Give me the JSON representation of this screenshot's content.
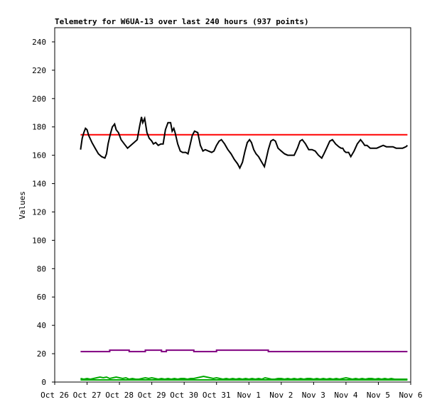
{
  "chart_data": {
    "type": "line",
    "title": "Telemetry for W6UA-13 over last 240 hours (937 points)",
    "xlabel": "",
    "ylabel": "Values",
    "ylim": [
      0,
      250
    ],
    "xlim": [
      0,
      11
    ],
    "grid": false,
    "y_ticks": [
      0,
      20,
      40,
      60,
      80,
      100,
      120,
      140,
      160,
      180,
      200,
      220,
      240
    ],
    "x_ticks": [
      {
        "x": 0,
        "label": "Oct 26"
      },
      {
        "x": 1,
        "label": "Oct 27"
      },
      {
        "x": 2,
        "label": "Oct 28"
      },
      {
        "x": 3,
        "label": "Oct 29"
      },
      {
        "x": 4,
        "label": "Oct 30"
      },
      {
        "x": 5,
        "label": "Oct 31"
      },
      {
        "x": 6,
        "label": "Nov 1"
      },
      {
        "x": 7,
        "label": "Nov 2"
      },
      {
        "x": 8,
        "label": "Nov 3"
      },
      {
        "x": 9,
        "label": "Nov 4"
      },
      {
        "x": 10,
        "label": "Nov 5"
      },
      {
        "x": 11,
        "label": "Nov 6"
      }
    ],
    "series": [
      {
        "color": "#ff0000",
        "points": [
          [
            0.8,
            174.5
          ],
          [
            10.9,
            174.5
          ]
        ]
      },
      {
        "color": "#000000",
        "points": [
          [
            0.8,
            164
          ],
          [
            0.85,
            172
          ],
          [
            0.9,
            176
          ],
          [
            0.95,
            179
          ],
          [
            1.0,
            178
          ],
          [
            1.05,
            174
          ],
          [
            1.15,
            169
          ],
          [
            1.25,
            165
          ],
          [
            1.35,
            161
          ],
          [
            1.45,
            159
          ],
          [
            1.55,
            158
          ],
          [
            1.6,
            161
          ],
          [
            1.65,
            168
          ],
          [
            1.72,
            175
          ],
          [
            1.78,
            180
          ],
          [
            1.85,
            182
          ],
          [
            1.9,
            178
          ],
          [
            1.97,
            176
          ],
          [
            2.05,
            171
          ],
          [
            2.15,
            168
          ],
          [
            2.25,
            165
          ],
          [
            2.35,
            167
          ],
          [
            2.45,
            169
          ],
          [
            2.55,
            171
          ],
          [
            2.62,
            180
          ],
          [
            2.68,
            187
          ],
          [
            2.72,
            183
          ],
          [
            2.78,
            186
          ],
          [
            2.85,
            176
          ],
          [
            2.92,
            172
          ],
          [
            3.0,
            170
          ],
          [
            3.05,
            168
          ],
          [
            3.12,
            169
          ],
          [
            3.2,
            167
          ],
          [
            3.28,
            168
          ],
          [
            3.35,
            168
          ],
          [
            3.42,
            178
          ],
          [
            3.5,
            183
          ],
          [
            3.58,
            183
          ],
          [
            3.63,
            177
          ],
          [
            3.68,
            179
          ],
          [
            3.72,
            176
          ],
          [
            3.8,
            168
          ],
          [
            3.88,
            163
          ],
          [
            3.95,
            162
          ],
          [
            4.05,
            162
          ],
          [
            4.12,
            161
          ],
          [
            4.18,
            167
          ],
          [
            4.25,
            174
          ],
          [
            4.32,
            177
          ],
          [
            4.42,
            176
          ],
          [
            4.5,
            167
          ],
          [
            4.58,
            163
          ],
          [
            4.65,
            164
          ],
          [
            4.75,
            163
          ],
          [
            4.85,
            162
          ],
          [
            4.92,
            163
          ],
          [
            5.0,
            167
          ],
          [
            5.08,
            170
          ],
          [
            5.15,
            171
          ],
          [
            5.25,
            168
          ],
          [
            5.35,
            164
          ],
          [
            5.45,
            161
          ],
          [
            5.55,
            157
          ],
          [
            5.65,
            154
          ],
          [
            5.72,
            151
          ],
          [
            5.8,
            155
          ],
          [
            5.88,
            163
          ],
          [
            5.95,
            169
          ],
          [
            6.02,
            171
          ],
          [
            6.08,
            169
          ],
          [
            6.15,
            164
          ],
          [
            6.22,
            161
          ],
          [
            6.3,
            159
          ],
          [
            6.4,
            155
          ],
          [
            6.48,
            152
          ],
          [
            6.52,
            156
          ],
          [
            6.6,
            164
          ],
          [
            6.68,
            170
          ],
          [
            6.75,
            171
          ],
          [
            6.82,
            170
          ],
          [
            6.9,
            165
          ],
          [
            7.0,
            163
          ],
          [
            7.1,
            161
          ],
          [
            7.2,
            160
          ],
          [
            7.3,
            160
          ],
          [
            7.4,
            160
          ],
          [
            7.5,
            165
          ],
          [
            7.58,
            170
          ],
          [
            7.65,
            171
          ],
          [
            7.75,
            168
          ],
          [
            7.85,
            164
          ],
          [
            7.95,
            164
          ],
          [
            8.05,
            163
          ],
          [
            8.15,
            160
          ],
          [
            8.25,
            158
          ],
          [
            8.32,
            161
          ],
          [
            8.4,
            165
          ],
          [
            8.5,
            170
          ],
          [
            8.58,
            171
          ],
          [
            8.68,
            168
          ],
          [
            8.78,
            166
          ],
          [
            8.85,
            165
          ],
          [
            8.9,
            165
          ],
          [
            8.95,
            163
          ],
          [
            9.0,
            162
          ],
          [
            9.08,
            162
          ],
          [
            9.15,
            159
          ],
          [
            9.25,
            163
          ],
          [
            9.35,
            168
          ],
          [
            9.45,
            171
          ],
          [
            9.52,
            169
          ],
          [
            9.58,
            167
          ],
          [
            9.65,
            167
          ],
          [
            9.75,
            165
          ],
          [
            9.85,
            165
          ],
          [
            9.95,
            165
          ],
          [
            10.05,
            166
          ],
          [
            10.15,
            167
          ],
          [
            10.25,
            166
          ],
          [
            10.35,
            166
          ],
          [
            10.45,
            166
          ],
          [
            10.55,
            165
          ],
          [
            10.65,
            165
          ],
          [
            10.75,
            165
          ],
          [
            10.85,
            166
          ],
          [
            10.9,
            167
          ]
        ]
      },
      {
        "color": "#800080",
        "points": [
          [
            0.8,
            21.5
          ],
          [
            1.7,
            21.5
          ],
          [
            1.7,
            22.5
          ],
          [
            2.3,
            22.5
          ],
          [
            2.3,
            21.5
          ],
          [
            2.8,
            21.5
          ],
          [
            2.8,
            22.5
          ],
          [
            3.3,
            22.5
          ],
          [
            3.3,
            21.5
          ],
          [
            3.45,
            21.5
          ],
          [
            3.45,
            22.5
          ],
          [
            4.3,
            22.5
          ],
          [
            4.3,
            21.5
          ],
          [
            5.0,
            21.5
          ],
          [
            5.0,
            22.5
          ],
          [
            6.6,
            22.5
          ],
          [
            6.6,
            21.5
          ],
          [
            10.9,
            21.5
          ]
        ]
      },
      {
        "color": "#00aa00",
        "points": [
          [
            0.8,
            2.5
          ],
          [
            0.9,
            2
          ],
          [
            1.0,
            2.5
          ],
          [
            1.1,
            2
          ],
          [
            1.2,
            2.5
          ],
          [
            1.3,
            3
          ],
          [
            1.4,
            3.5
          ],
          [
            1.5,
            3
          ],
          [
            1.6,
            3.5
          ],
          [
            1.7,
            2.5
          ],
          [
            1.8,
            3
          ],
          [
            1.9,
            3.5
          ],
          [
            2.0,
            3
          ],
          [
            2.1,
            2.5
          ],
          [
            2.2,
            3
          ],
          [
            2.3,
            2
          ],
          [
            2.4,
            2.5
          ],
          [
            2.5,
            2
          ],
          [
            2.6,
            2
          ],
          [
            2.7,
            2.5
          ],
          [
            2.8,
            3
          ],
          [
            2.9,
            2.5
          ],
          [
            3.0,
            3
          ],
          [
            3.1,
            2.5
          ],
          [
            3.2,
            2
          ],
          [
            3.3,
            2.5
          ],
          [
            3.4,
            2
          ],
          [
            3.5,
            2.5
          ],
          [
            3.6,
            2
          ],
          [
            3.7,
            2.5
          ],
          [
            3.8,
            2
          ],
          [
            3.9,
            2.5
          ],
          [
            4.0,
            2.5
          ],
          [
            4.1,
            2
          ],
          [
            4.2,
            2.5
          ],
          [
            4.3,
            2.5
          ],
          [
            4.4,
            3
          ],
          [
            4.5,
            3.5
          ],
          [
            4.6,
            4
          ],
          [
            4.7,
            3.5
          ],
          [
            4.8,
            3
          ],
          [
            4.9,
            2.5
          ],
          [
            5.0,
            3
          ],
          [
            5.1,
            2.5
          ],
          [
            5.2,
            2
          ],
          [
            5.3,
            2.5
          ],
          [
            5.4,
            2
          ],
          [
            5.5,
            2.5
          ],
          [
            5.6,
            2
          ],
          [
            5.7,
            2.5
          ],
          [
            5.8,
            2
          ],
          [
            5.9,
            2.5
          ],
          [
            6.0,
            2
          ],
          [
            6.1,
            2.5
          ],
          [
            6.2,
            2
          ],
          [
            6.3,
            2.5
          ],
          [
            6.4,
            2
          ],
          [
            6.5,
            3
          ],
          [
            6.6,
            2.5
          ],
          [
            6.7,
            2
          ],
          [
            6.8,
            2
          ],
          [
            6.9,
            2.5
          ],
          [
            7.0,
            2.5
          ],
          [
            7.1,
            2
          ],
          [
            7.2,
            2.5
          ],
          [
            7.3,
            2
          ],
          [
            7.4,
            2.5
          ],
          [
            7.5,
            2
          ],
          [
            7.6,
            2.5
          ],
          [
            7.7,
            2
          ],
          [
            7.8,
            2.5
          ],
          [
            7.9,
            2.5
          ],
          [
            8.0,
            2
          ],
          [
            8.1,
            2.5
          ],
          [
            8.2,
            2
          ],
          [
            8.3,
            2.5
          ],
          [
            8.4,
            2
          ],
          [
            8.5,
            2.5
          ],
          [
            8.6,
            2
          ],
          [
            8.7,
            2.5
          ],
          [
            8.8,
            2
          ],
          [
            8.9,
            2.5
          ],
          [
            9.0,
            3
          ],
          [
            9.1,
            2.5
          ],
          [
            9.2,
            2
          ],
          [
            9.3,
            2.5
          ],
          [
            9.4,
            2
          ],
          [
            9.5,
            2.5
          ],
          [
            9.6,
            2
          ],
          [
            9.7,
            2.5
          ],
          [
            9.8,
            2.5
          ],
          [
            9.9,
            2
          ],
          [
            10.0,
            2.5
          ],
          [
            10.1,
            2
          ],
          [
            10.2,
            2.5
          ],
          [
            10.3,
            2
          ],
          [
            10.4,
            2.5
          ],
          [
            10.5,
            2
          ],
          [
            10.6,
            2
          ],
          [
            10.7,
            2
          ],
          [
            10.8,
            2
          ],
          [
            10.9,
            2
          ]
        ]
      },
      {
        "color": "#00aa00",
        "points": [
          [
            0.8,
            1.5
          ],
          [
            10.9,
            1.5
          ]
        ]
      }
    ]
  }
}
